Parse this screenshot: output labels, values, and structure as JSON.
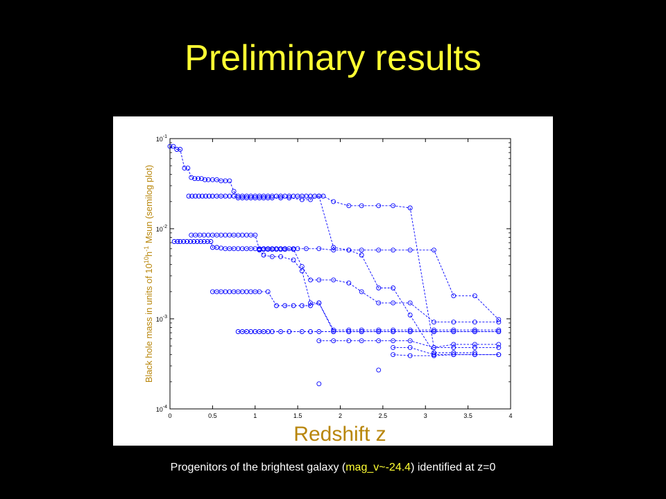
{
  "slide": {
    "title": "Preliminary results",
    "caption_pre": "Progenitors of the brightest galaxy (",
    "caption_highlight": "mag_v~-24.4",
    "caption_post": ") identified at z=0"
  },
  "chart_data": {
    "type": "scatter",
    "xlabel": "Redshift z",
    "ylabel": "Black hole mass in units of 10^10 h^-1 Msun (semilog plot)",
    "ylabel_parts": [
      "Black hole mass in units of 10",
      "10",
      "h",
      "-1",
      " Msun (semilog plot)"
    ],
    "xlim": [
      0,
      4
    ],
    "ylim": [
      0.0001,
      0.1
    ],
    "yscale": "log",
    "x_ticks": [
      "0",
      "0.5",
      "1",
      "1.5",
      "2",
      "2.5",
      "3",
      "3.5",
      "4"
    ],
    "y_ticks": [
      {
        "base": "10",
        "exp": "-4",
        "value": 0.0001
      },
      {
        "base": "10",
        "exp": "-3",
        "value": 0.001
      },
      {
        "base": "10",
        "exp": "-2",
        "value": 0.01
      },
      {
        "base": "10",
        "exp": "-1",
        "value": 0.1
      }
    ],
    "grid": false,
    "marker": "circle-open",
    "line_style": "dashed",
    "color": "#0000ff",
    "series": [
      {
        "points": [
          [
            0,
            0.082
          ],
          [
            0.04,
            0.082
          ],
          [
            0.08,
            0.076
          ],
          [
            0.12,
            0.076
          ],
          [
            0.17,
            0.047
          ],
          [
            0.21,
            0.047
          ],
          [
            0.25,
            0.037
          ],
          [
            0.29,
            0.036
          ],
          [
            0.33,
            0.036
          ],
          [
            0.37,
            0.036
          ],
          [
            0.41,
            0.035
          ],
          [
            0.45,
            0.035
          ],
          [
            0.5,
            0.035
          ],
          [
            0.55,
            0.035
          ],
          [
            0.6,
            0.034
          ],
          [
            0.65,
            0.034
          ],
          [
            0.7,
            0.034
          ],
          [
            0.75,
            0.026
          ],
          [
            0.8,
            0.023
          ],
          [
            0.85,
            0.023
          ],
          [
            0.9,
            0.023
          ],
          [
            0.95,
            0.023
          ],
          [
            1.0,
            0.023
          ],
          [
            1.05,
            0.023
          ],
          [
            1.1,
            0.023
          ],
          [
            1.15,
            0.023
          ],
          [
            1.2,
            0.023
          ],
          [
            1.25,
            0.023
          ],
          [
            1.3,
            0.023
          ],
          [
            1.35,
            0.023
          ],
          [
            1.4,
            0.023
          ],
          [
            1.45,
            0.023
          ],
          [
            1.5,
            0.023
          ],
          [
            1.55,
            0.023
          ],
          [
            1.6,
            0.023
          ],
          [
            1.65,
            0.023
          ],
          [
            1.7,
            0.023
          ],
          [
            1.75,
            0.023
          ],
          [
            1.8,
            0.023
          ],
          [
            1.92,
            0.02
          ],
          [
            2.1,
            0.018
          ],
          [
            2.25,
            0.018
          ],
          [
            2.45,
            0.018
          ],
          [
            2.62,
            0.018
          ],
          [
            2.82,
            0.017
          ],
          [
            3.1,
            0.00048
          ],
          [
            3.33,
            0.00048
          ],
          [
            3.58,
            0.00048
          ],
          [
            3.86,
            0.00048
          ]
        ]
      },
      {
        "points": [
          [
            0.22,
            0.023
          ],
          [
            0.26,
            0.023
          ],
          [
            0.3,
            0.023
          ],
          [
            0.34,
            0.023
          ],
          [
            0.38,
            0.023
          ],
          [
            0.42,
            0.023
          ],
          [
            0.46,
            0.023
          ],
          [
            0.5,
            0.023
          ],
          [
            0.55,
            0.023
          ],
          [
            0.6,
            0.023
          ],
          [
            0.65,
            0.023
          ],
          [
            0.7,
            0.023
          ],
          [
            0.75,
            0.023
          ],
          [
            0.8,
            0.022
          ],
          [
            0.85,
            0.022
          ],
          [
            0.9,
            0.022
          ],
          [
            0.95,
            0.022
          ],
          [
            1.0,
            0.022
          ],
          [
            1.05,
            0.022
          ],
          [
            1.1,
            0.022
          ],
          [
            1.15,
            0.022
          ],
          [
            1.2,
            0.022
          ],
          [
            1.3,
            0.022
          ],
          [
            1.4,
            0.022
          ],
          [
            1.55,
            0.021
          ],
          [
            1.65,
            0.021
          ],
          [
            1.75,
            0.023
          ],
          [
            1.92,
            0.0062
          ],
          [
            2.1,
            0.0058
          ],
          [
            2.25,
            0.0051
          ],
          [
            2.45,
            0.0022
          ],
          [
            2.62,
            0.0022
          ],
          [
            2.82,
            0.0011
          ],
          [
            3.1,
            0.00042
          ],
          [
            3.33,
            0.00042
          ],
          [
            3.58,
            0.00042
          ]
        ]
      },
      {
        "points": [
          [
            0.05,
            0.0072
          ],
          [
            0.09,
            0.0072
          ],
          [
            0.12,
            0.0072
          ],
          [
            0.16,
            0.0072
          ],
          [
            0.2,
            0.0072
          ],
          [
            0.24,
            0.0072
          ],
          [
            0.28,
            0.0072
          ],
          [
            0.32,
            0.0072
          ],
          [
            0.36,
            0.0072
          ],
          [
            0.4,
            0.0072
          ],
          [
            0.44,
            0.0072
          ],
          [
            0.48,
            0.0072
          ],
          [
            0.5,
            0.0062
          ],
          [
            0.55,
            0.0062
          ],
          [
            0.6,
            0.0061
          ],
          [
            0.65,
            0.006
          ],
          [
            0.7,
            0.006
          ],
          [
            0.75,
            0.006
          ],
          [
            0.8,
            0.006
          ],
          [
            0.85,
            0.006
          ],
          [
            0.9,
            0.006
          ],
          [
            0.95,
            0.006
          ],
          [
            1.0,
            0.006
          ],
          [
            1.05,
            0.006
          ],
          [
            1.1,
            0.006
          ],
          [
            1.15,
            0.006
          ],
          [
            1.2,
            0.006
          ],
          [
            1.25,
            0.006
          ],
          [
            1.3,
            0.006
          ],
          [
            1.35,
            0.006
          ],
          [
            1.4,
            0.006
          ],
          [
            1.45,
            0.006
          ],
          [
            1.5,
            0.006
          ],
          [
            1.6,
            0.006
          ],
          [
            1.75,
            0.006
          ],
          [
            1.92,
            0.0058
          ],
          [
            2.1,
            0.0058
          ],
          [
            2.25,
            0.0058
          ],
          [
            2.45,
            0.0058
          ],
          [
            2.62,
            0.0058
          ],
          [
            2.82,
            0.0058
          ],
          [
            3.1,
            0.0058
          ],
          [
            3.33,
            0.0018
          ],
          [
            3.58,
            0.0018
          ],
          [
            3.86,
            0.00098
          ]
        ]
      },
      {
        "points": [
          [
            0.25,
            0.0085
          ],
          [
            0.3,
            0.0085
          ],
          [
            0.35,
            0.0085
          ],
          [
            0.4,
            0.0085
          ],
          [
            0.45,
            0.0085
          ],
          [
            0.5,
            0.0085
          ],
          [
            0.55,
            0.0085
          ],
          [
            0.6,
            0.0085
          ],
          [
            0.65,
            0.0085
          ],
          [
            0.7,
            0.0085
          ],
          [
            0.75,
            0.0085
          ],
          [
            0.8,
            0.0085
          ],
          [
            0.85,
            0.0085
          ],
          [
            0.9,
            0.0085
          ],
          [
            0.95,
            0.0085
          ],
          [
            1.0,
            0.0085
          ],
          [
            1.05,
            0.0059
          ],
          [
            1.1,
            0.0059
          ],
          [
            1.15,
            0.0059
          ],
          [
            1.2,
            0.0059
          ],
          [
            1.25,
            0.0059
          ],
          [
            1.3,
            0.0059
          ],
          [
            1.35,
            0.0059
          ],
          [
            1.45,
            0.0059
          ],
          [
            1.55,
            0.0038
          ],
          [
            1.65,
            0.0027
          ],
          [
            1.75,
            0.0027
          ],
          [
            1.92,
            0.0027
          ],
          [
            2.1,
            0.0025
          ],
          [
            2.25,
            0.002
          ],
          [
            2.45,
            0.0015
          ],
          [
            2.62,
            0.0015
          ],
          [
            2.82,
            0.0015
          ],
          [
            3.1,
            0.00092
          ],
          [
            3.33,
            0.00092
          ],
          [
            3.58,
            0.00092
          ],
          [
            3.86,
            0.00092
          ]
        ]
      },
      {
        "points": [
          [
            1.05,
            0.0058
          ],
          [
            1.1,
            0.0051
          ],
          [
            1.2,
            0.0049
          ],
          [
            1.3,
            0.0049
          ],
          [
            1.45,
            0.0045
          ],
          [
            1.55,
            0.0034
          ],
          [
            1.65,
            0.0015
          ],
          [
            1.75,
            0.0015
          ],
          [
            1.92,
            0.00075
          ],
          [
            2.1,
            0.00075
          ],
          [
            2.25,
            0.00075
          ],
          [
            2.45,
            0.00075
          ],
          [
            2.62,
            0.00075
          ],
          [
            2.82,
            0.00075
          ],
          [
            3.1,
            0.00075
          ],
          [
            3.33,
            0.00075
          ],
          [
            3.58,
            0.00075
          ],
          [
            3.86,
            0.00075
          ]
        ]
      },
      {
        "points": [
          [
            0.5,
            0.002
          ],
          [
            0.55,
            0.002
          ],
          [
            0.6,
            0.002
          ],
          [
            0.65,
            0.002
          ],
          [
            0.7,
            0.002
          ],
          [
            0.75,
            0.002
          ],
          [
            0.8,
            0.002
          ],
          [
            0.85,
            0.002
          ],
          [
            0.9,
            0.002
          ],
          [
            0.95,
            0.002
          ],
          [
            1.0,
            0.002
          ],
          [
            1.05,
            0.002
          ],
          [
            1.15,
            0.002
          ],
          [
            1.25,
            0.0014
          ],
          [
            1.35,
            0.0014
          ],
          [
            1.45,
            0.0014
          ],
          [
            1.55,
            0.0014
          ],
          [
            1.65,
            0.0014
          ],
          [
            1.75,
            0.0015
          ],
          [
            1.92,
            0.00072
          ],
          [
            2.1,
            0.00072
          ],
          [
            2.25,
            0.00072
          ],
          [
            2.45,
            0.00072
          ],
          [
            2.62,
            0.00072
          ],
          [
            2.82,
            0.00072
          ],
          [
            3.1,
            0.00072
          ],
          [
            3.33,
            0.00072
          ],
          [
            3.58,
            0.00072
          ],
          [
            3.86,
            0.00072
          ]
        ]
      },
      {
        "points": [
          [
            0.8,
            0.00072
          ],
          [
            0.85,
            0.00072
          ],
          [
            0.9,
            0.00072
          ],
          [
            0.95,
            0.00072
          ],
          [
            1.0,
            0.00072
          ],
          [
            1.05,
            0.00072
          ],
          [
            1.1,
            0.00072
          ],
          [
            1.15,
            0.00072
          ],
          [
            1.2,
            0.00072
          ],
          [
            1.3,
            0.00072
          ],
          [
            1.4,
            0.00072
          ],
          [
            1.55,
            0.00072
          ],
          [
            1.65,
            0.00072
          ],
          [
            1.75,
            0.00072
          ],
          [
            1.92,
            0.00072
          ],
          [
            2.1,
            0.00072
          ],
          [
            2.25,
            0.00072
          ],
          [
            2.45,
            0.00072
          ],
          [
            2.62,
            0.00072
          ],
          [
            2.82,
            0.00072
          ],
          [
            3.1,
            0.00072
          ],
          [
            3.33,
            0.00072
          ],
          [
            3.58,
            0.00072
          ],
          [
            3.86,
            0.00072
          ]
        ]
      },
      {
        "points": [
          [
            1.75,
            0.00057
          ],
          [
            1.92,
            0.00057
          ],
          [
            2.1,
            0.00057
          ],
          [
            2.25,
            0.00057
          ],
          [
            2.45,
            0.00057
          ],
          [
            2.62,
            0.00057
          ],
          [
            2.82,
            0.00057
          ],
          [
            3.1,
            0.00048
          ],
          [
            3.33,
            0.00052
          ],
          [
            3.58,
            0.00052
          ],
          [
            3.86,
            0.00052
          ]
        ]
      },
      {
        "points": [
          [
            2.62,
            0.00048
          ],
          [
            2.82,
            0.00048
          ],
          [
            3.1,
            0.0004
          ],
          [
            3.33,
            0.0004
          ],
          [
            3.58,
            0.0004
          ],
          [
            3.86,
            0.0004
          ]
        ]
      },
      {
        "points": [
          [
            2.62,
            0.0004
          ],
          [
            2.82,
            0.00039
          ],
          [
            3.1,
            0.00039
          ],
          [
            3.33,
            0.0004
          ],
          [
            3.58,
            0.0004
          ],
          [
            3.86,
            0.0004
          ]
        ]
      },
      {
        "points": [
          [
            1.75,
            0.00019
          ]
        ]
      },
      {
        "points": [
          [
            2.45,
            0.00027
          ]
        ]
      }
    ]
  }
}
